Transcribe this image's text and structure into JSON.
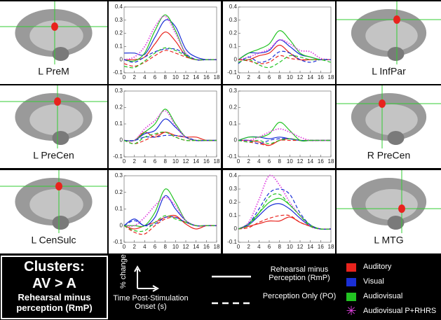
{
  "regions": {
    "left": [
      "L PreM",
      "L PreCen",
      "L CenSulc"
    ],
    "right": [
      "L InfPar",
      "R PreCen",
      "L MTG"
    ]
  },
  "clusters": {
    "title": "Clusters:",
    "contrast": "AV > A",
    "subtitle": "Rehearsal minus perception (RmP)"
  },
  "legend": {
    "y_axis": "% change",
    "x_axis": "Time Post-Stimulation Onset (s)",
    "lines": [
      {
        "label": "Rehearsal minus Perception (RmP)",
        "style": "solid"
      },
      {
        "label": "Perception Only (PO)",
        "style": "dashed"
      }
    ],
    "colors": [
      {
        "label": "Auditory",
        "color": "#e8231d"
      },
      {
        "label": "Visual",
        "color": "#1a2fd6"
      },
      {
        "label": "Audiovisual",
        "color": "#22c322"
      },
      {
        "label": "Audiovisual P+RHRS",
        "color": "#e040e0"
      }
    ]
  },
  "chart_data": [
    {
      "type": "line",
      "x": [
        0,
        2,
        4,
        6,
        8,
        10,
        12,
        14,
        16,
        18
      ],
      "xlim": [
        0,
        18
      ],
      "xticks": [
        0,
        2,
        4,
        6,
        8,
        10,
        12,
        14,
        16,
        18
      ],
      "ylim": [
        -0.1,
        0.4
      ],
      "yticks": [
        -0.1,
        0,
        0.1,
        0.2,
        0.3,
        0.4
      ],
      "series": [
        {
          "color": "#e8231d",
          "style": "solid",
          "values": [
            0,
            0,
            0.02,
            0.12,
            0.21,
            0.14,
            0.03,
            0,
            0,
            0
          ]
        },
        {
          "color": "#1a2fd6",
          "style": "solid",
          "values": [
            0.05,
            0.05,
            0.04,
            0.17,
            0.3,
            0.25,
            0.08,
            0.02,
            0,
            0
          ]
        },
        {
          "color": "#22c322",
          "style": "solid",
          "values": [
            0,
            -0.01,
            0.05,
            0.22,
            0.34,
            0.22,
            0.04,
            0,
            0,
            0
          ]
        },
        {
          "color": "#e040e0",
          "style": "dotted",
          "values": [
            0,
            0.02,
            0.1,
            0.25,
            0.33,
            0.2,
            0.05,
            0,
            0,
            0
          ]
        },
        {
          "color": "#e8231d",
          "style": "dashed",
          "values": [
            -0.03,
            -0.05,
            -0.02,
            0.03,
            0.07,
            0.05,
            0.02,
            0,
            0,
            0
          ]
        },
        {
          "color": "#1a2fd6",
          "style": "dashed",
          "values": [
            0,
            -0.02,
            0.02,
            0.06,
            0.08,
            0.08,
            0.04,
            0,
            0,
            0
          ]
        },
        {
          "color": "#22c322",
          "style": "dashed",
          "values": [
            -0.05,
            -0.06,
            -0.01,
            0.05,
            0.09,
            0.07,
            0.03,
            0,
            0,
            0
          ]
        }
      ]
    },
    {
      "type": "line",
      "x": [
        0,
        2,
        4,
        6,
        8,
        10,
        12,
        14,
        16,
        18
      ],
      "xlim": [
        0,
        18
      ],
      "xticks": [
        0,
        2,
        4,
        6,
        8,
        10,
        12,
        14,
        16,
        18
      ],
      "ylim": [
        -0.1,
        0.4
      ],
      "yticks": [
        -0.1,
        0,
        0.1,
        0.2,
        0.3,
        0.4
      ],
      "series": [
        {
          "color": "#e8231d",
          "style": "solid",
          "values": [
            0,
            0,
            0.03,
            0.05,
            0.11,
            0.05,
            0,
            0,
            0,
            0
          ]
        },
        {
          "color": "#1a2fd6",
          "style": "solid",
          "values": [
            0,
            0.05,
            0.05,
            0.07,
            0.15,
            0.1,
            0.04,
            0.02,
            0,
            0
          ]
        },
        {
          "color": "#22c322",
          "style": "solid",
          "values": [
            0,
            0.05,
            0.08,
            0.12,
            0.22,
            0.15,
            0.05,
            0.02,
            0,
            0
          ]
        },
        {
          "color": "#e040e0",
          "style": "dotted",
          "values": [
            0,
            0.02,
            0.05,
            0.08,
            0.15,
            0.12,
            0.07,
            0.06,
            0.01,
            0
          ]
        },
        {
          "color": "#e8231d",
          "style": "dashed",
          "values": [
            0,
            -0.01,
            -0.03,
            -0.02,
            0.03,
            0.01,
            0,
            0,
            0,
            0
          ]
        },
        {
          "color": "#1a2fd6",
          "style": "dashed",
          "values": [
            -0.03,
            0.02,
            -0.02,
            0,
            0.06,
            0.05,
            0,
            -0.02,
            0,
            0
          ]
        },
        {
          "color": "#22c322",
          "style": "dashed",
          "values": [
            -0.02,
            0,
            -0.04,
            -0.06,
            -0.02,
            0.03,
            0.02,
            0,
            0,
            -0.02
          ]
        }
      ]
    },
    {
      "type": "line",
      "x": [
        0,
        2,
        4,
        6,
        8,
        10,
        12,
        14,
        16,
        18
      ],
      "xlim": [
        0,
        18
      ],
      "xticks": [
        0,
        2,
        4,
        6,
        8,
        10,
        12,
        14,
        16,
        18
      ],
      "ylim": [
        -0.1,
        0.3
      ],
      "yticks": [
        -0.1,
        0,
        0.1,
        0.2,
        0.3
      ],
      "series": [
        {
          "color": "#e8231d",
          "style": "solid",
          "values": [
            0,
            0,
            0.05,
            0.02,
            0.05,
            0.03,
            0.02,
            0.02,
            0,
            0
          ]
        },
        {
          "color": "#1a2fd6",
          "style": "solid",
          "values": [
            0,
            0,
            0.04,
            0.06,
            0.13,
            0.08,
            0.02,
            0,
            0,
            0
          ]
        },
        {
          "color": "#22c322",
          "style": "solid",
          "values": [
            0,
            0,
            0.05,
            0.1,
            0.19,
            0.1,
            0.02,
            0,
            0,
            0
          ]
        },
        {
          "color": "#e040e0",
          "style": "dotted",
          "values": [
            0,
            0,
            0.07,
            0.12,
            0.18,
            0.09,
            0.02,
            0,
            0,
            0
          ]
        },
        {
          "color": "#e8231d",
          "style": "dashed",
          "values": [
            0,
            -0.02,
            0,
            0.03,
            0.05,
            0.02,
            0,
            0,
            0,
            0
          ]
        },
        {
          "color": "#1a2fd6",
          "style": "dashed",
          "values": [
            0,
            0,
            0.02,
            0.02,
            0.03,
            0.03,
            0.02,
            0,
            0,
            0
          ]
        },
        {
          "color": "#22c322",
          "style": "dashed",
          "values": [
            0,
            -0.02,
            0.02,
            0.04,
            0.05,
            0.02,
            0,
            0,
            0,
            0
          ]
        }
      ]
    },
    {
      "type": "line",
      "x": [
        0,
        2,
        4,
        6,
        8,
        10,
        12,
        14,
        16,
        18
      ],
      "xlim": [
        0,
        18
      ],
      "xticks": [
        0,
        2,
        4,
        6,
        8,
        10,
        12,
        14,
        16,
        18
      ],
      "ylim": [
        -0.1,
        0.3
      ],
      "yticks": [
        -0.1,
        0,
        0.1,
        0.2,
        0.3
      ],
      "series": [
        {
          "color": "#e8231d",
          "style": "solid",
          "values": [
            0,
            0,
            -0.01,
            -0.03,
            0,
            0.01,
            0,
            0,
            0,
            0
          ]
        },
        {
          "color": "#1a2fd6",
          "style": "solid",
          "values": [
            0,
            0.02,
            0.02,
            0.01,
            0.02,
            0.01,
            0,
            0,
            0,
            0
          ]
        },
        {
          "color": "#22c322",
          "style": "solid",
          "values": [
            0,
            0.02,
            0.02,
            0.04,
            0.11,
            0.06,
            0,
            0,
            0,
            0
          ]
        },
        {
          "color": "#e040e0",
          "style": "dotted",
          "values": [
            0,
            0,
            0.02,
            0.05,
            0.07,
            0.05,
            0.02,
            0,
            0,
            0
          ]
        },
        {
          "color": "#e8231d",
          "style": "dashed",
          "values": [
            0,
            -0.01,
            -0.02,
            -0.03,
            0,
            0,
            0,
            0,
            0,
            0
          ]
        },
        {
          "color": "#1a2fd6",
          "style": "dashed",
          "values": [
            0,
            0,
            -0.02,
            0,
            0.01,
            0.01,
            0,
            0,
            0,
            0
          ]
        },
        {
          "color": "#22c322",
          "style": "dashed",
          "values": [
            0,
            -0.01,
            0,
            -0.02,
            0,
            0.01,
            0,
            0,
            0,
            0
          ]
        }
      ]
    },
    {
      "type": "line",
      "x": [
        0,
        2,
        4,
        6,
        8,
        10,
        12,
        14,
        16,
        18
      ],
      "xlim": [
        0,
        18
      ],
      "xticks": [
        0,
        2,
        4,
        6,
        8,
        10,
        12,
        14,
        16,
        18
      ],
      "ylim": [
        -0.1,
        0.3
      ],
      "yticks": [
        -0.1,
        0,
        0.1,
        0.2,
        0.3
      ],
      "series": [
        {
          "color": "#e8231d",
          "style": "solid",
          "values": [
            0,
            -0.02,
            0,
            0.02,
            0.05,
            0.06,
            0.01,
            -0.02,
            0,
            0
          ]
        },
        {
          "color": "#1a2fd6",
          "style": "solid",
          "values": [
            0,
            0.04,
            0,
            0.05,
            0.18,
            0.1,
            0.03,
            0,
            0,
            0
          ]
        },
        {
          "color": "#22c322",
          "style": "solid",
          "values": [
            0,
            0,
            0,
            0.08,
            0.22,
            0.14,
            0.03,
            0,
            0,
            0
          ]
        },
        {
          "color": "#e040e0",
          "style": "dotted",
          "values": [
            0,
            0,
            0.05,
            0.12,
            0.17,
            0.12,
            0.03,
            0,
            0,
            0
          ]
        },
        {
          "color": "#e8231d",
          "style": "dashed",
          "values": [
            0,
            -0.04,
            -0.05,
            0,
            0.04,
            0.05,
            0.02,
            0,
            0,
            0
          ]
        },
        {
          "color": "#1a2fd6",
          "style": "dashed",
          "values": [
            0,
            0.03,
            0,
            0.01,
            0.05,
            0.05,
            0.02,
            0,
            0,
            0
          ]
        },
        {
          "color": "#22c322",
          "style": "dashed",
          "values": [
            0,
            -0.03,
            -0.03,
            0.02,
            0.06,
            0.04,
            0.02,
            0,
            0,
            0
          ]
        }
      ]
    },
    {
      "type": "line",
      "x": [
        0,
        2,
        4,
        6,
        8,
        10,
        12,
        14,
        16,
        18
      ],
      "xlim": [
        0,
        18
      ],
      "xticks": [
        0,
        2,
        4,
        6,
        8,
        10,
        12,
        14,
        16,
        18
      ],
      "ylim": [
        -0.1,
        0.4
      ],
      "yticks": [
        -0.1,
        0,
        0.1,
        0.2,
        0.3,
        0.4
      ],
      "series": [
        {
          "color": "#e8231d",
          "style": "solid",
          "values": [
            0,
            0.02,
            0.04,
            0.06,
            0.06,
            0.09,
            0.05,
            0.02,
            0,
            0
          ]
        },
        {
          "color": "#1a2fd6",
          "style": "solid",
          "values": [
            0,
            0.03,
            0.1,
            0.17,
            0.19,
            0.15,
            0.08,
            0.02,
            0,
            0
          ]
        },
        {
          "color": "#22c322",
          "style": "solid",
          "values": [
            0,
            0.04,
            0.12,
            0.2,
            0.23,
            0.18,
            0.1,
            0.03,
            0,
            0
          ]
        },
        {
          "color": "#e040e0",
          "style": "dotted",
          "values": [
            0,
            0.05,
            0.22,
            0.4,
            0.33,
            0.2,
            0.1,
            0.02,
            0,
            0
          ]
        },
        {
          "color": "#e8231d",
          "style": "dashed",
          "values": [
            0,
            0.01,
            0.05,
            0.08,
            0.1,
            0.1,
            0.05,
            0.02,
            0,
            0
          ]
        },
        {
          "color": "#1a2fd6",
          "style": "dashed",
          "values": [
            0,
            0.04,
            0.15,
            0.27,
            0.3,
            0.26,
            0.12,
            0.03,
            0,
            0
          ]
        },
        {
          "color": "#22c322",
          "style": "dashed",
          "values": [
            0,
            0.03,
            0.12,
            0.24,
            0.26,
            0.18,
            0.1,
            0.02,
            0,
            0
          ]
        }
      ]
    }
  ]
}
